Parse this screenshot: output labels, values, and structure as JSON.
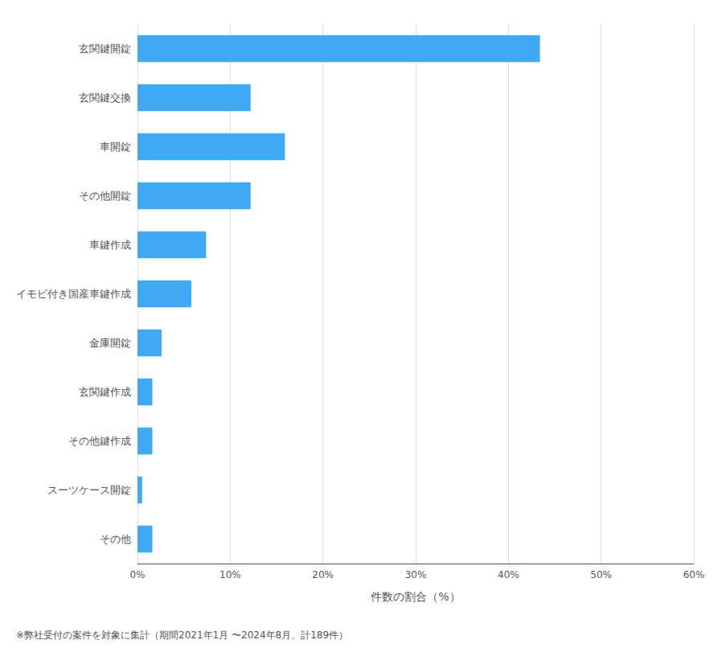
{
  "chart_data": {
    "type": "bar",
    "orientation": "horizontal",
    "categories": [
      "その他",
      "スーツケース開錠",
      "その他鍵作成",
      "玄関鍵作成",
      "金庫開錠",
      "イモビ付き国産車鍵作成",
      "車鍵作成",
      "その他開錠",
      "車開錠",
      "玄関鍵交換",
      "玄関鍵開錠"
    ],
    "values": [
      1.6,
      0.5,
      1.6,
      1.6,
      2.6,
      5.8,
      7.4,
      12.2,
      15.9,
      12.2,
      43.4
    ],
    "color": "#3fa9f5",
    "xlabel": "件数の割合（%）",
    "xlim": [
      0,
      60
    ],
    "xticks": [
      {
        "value": 0,
        "label": "0%"
      },
      {
        "value": 10,
        "label": "10%"
      },
      {
        "value": 20,
        "label": "20%"
      },
      {
        "value": 30,
        "label": "30%"
      },
      {
        "value": 40,
        "label": "40%"
      },
      {
        "value": 50,
        "label": "50%"
      },
      {
        "value": 60,
        "label": "60%"
      }
    ],
    "grid": true,
    "footnote": "※弊社受付の案件を対象に集計（期間2021年1月 〜2024年8月、計189件）"
  }
}
